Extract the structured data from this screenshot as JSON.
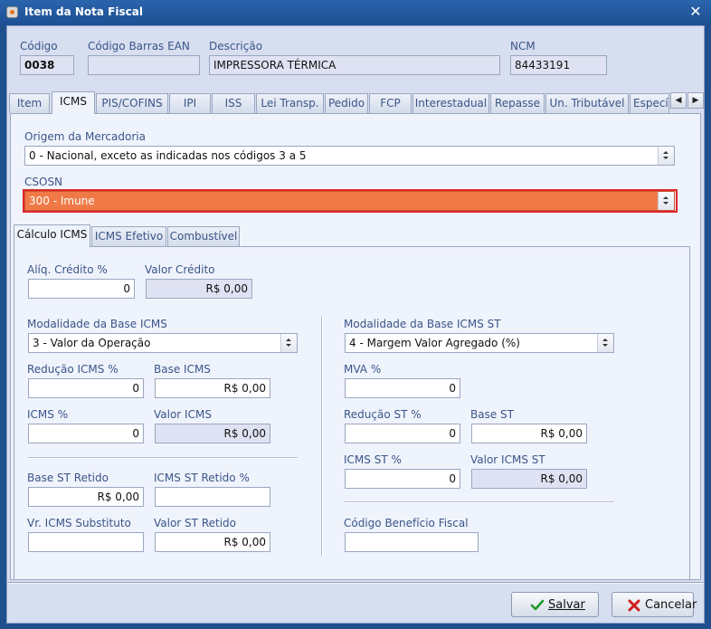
{
  "window": {
    "title": "Item da Nota Fiscal"
  },
  "header": {
    "codigo_label": "Código",
    "codigo_value": "0038",
    "barras_label": "Código Barras EAN",
    "barras_value": "",
    "descricao_label": "Descrição",
    "descricao_value": "IMPRESSORA TÉRMICA",
    "ncm_label": "NCM",
    "ncm_value": "84433191"
  },
  "tabs": [
    {
      "label": "Item"
    },
    {
      "label": "ICMS"
    },
    {
      "label": "PIS/COFINS"
    },
    {
      "label": "IPI"
    },
    {
      "label": "ISS"
    },
    {
      "label": "Lei Transp."
    },
    {
      "label": "Pedido"
    },
    {
      "label": "FCP"
    },
    {
      "label": "Interestadual"
    },
    {
      "label": "Repasse"
    },
    {
      "label": "Un. Tributável"
    },
    {
      "label": "Específ"
    }
  ],
  "icms": {
    "origem_label": "Origem da Mercadoria",
    "origem_value": "0 - Nacional, exceto as indicadas nos códigos 3 a 5",
    "csosn_label": "CSOSN",
    "csosn_value": "300 - Imune"
  },
  "subtabs": [
    {
      "label": "Cálculo ICMS"
    },
    {
      "label": "ICMS Efetivo"
    },
    {
      "label": "Combustível"
    }
  ],
  "calc": {
    "aliq_credito_label": "Alíq. Crédito %",
    "aliq_credito_value": "0",
    "valor_credito_label": "Valor Crédito",
    "valor_credito_value": "R$ 0,00",
    "modalidade_label": "Modalidade da Base ICMS",
    "modalidade_value": "3 - Valor da Operação",
    "reducao_label": "Redução ICMS %",
    "reducao_value": "0",
    "base_icms_label": "Base ICMS",
    "base_icms_value": "R$ 0,00",
    "icms_pct_label": "ICMS %",
    "icms_pct_value": "0",
    "valor_icms_label": "Valor ICMS",
    "valor_icms_value": "R$ 0,00",
    "base_st_retido_label": "Base ST Retido",
    "base_st_retido_value": "R$ 0,00",
    "icms_st_retido_label": "ICMS ST Retido %",
    "icms_st_retido_value": "",
    "vr_icms_subst_label": "Vr. ICMS Substituto",
    "vr_icms_subst_value": "",
    "valor_st_retido_label": "Valor ST Retido",
    "valor_st_retido_value": "R$ 0,00",
    "modalidade_st_label": "Modalidade da Base ICMS ST",
    "modalidade_st_value": "4 - Margem Valor Agregado (%)",
    "mva_label": "MVA %",
    "mva_value": "0",
    "reducao_st_label": "Redução ST %",
    "reducao_st_value": "0",
    "base_st_label": "Base ST",
    "base_st_value": "R$ 0,00",
    "icms_st_pct_label": "ICMS ST %",
    "icms_st_pct_value": "0",
    "valor_icms_st_label": "Valor ICMS ST",
    "valor_icms_st_value": "R$ 0,00",
    "cod_beneficio_label": "Código Benefício Fiscal",
    "cod_beneficio_value": ""
  },
  "buttons": {
    "salvar_label": "Salvar",
    "cancelar_label": "Cancelar"
  },
  "colors": {
    "csosn_highlight": "#ef7a47",
    "error_border": "#e0242a",
    "titlebar": "#1f4f8d"
  }
}
